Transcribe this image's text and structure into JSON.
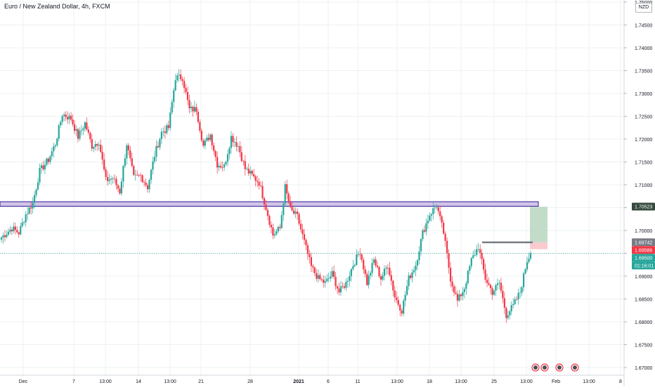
{
  "header": {
    "title": "Euro / New Zealand Dollar, 4h, FXCM",
    "currency": "NZD"
  },
  "price_tags": [
    {
      "label": "1.70523",
      "color": "#364a3d",
      "text_color": "#ffffff"
    },
    {
      "label": "1.69742",
      "color": "#787b86",
      "text_color": "#ffffff"
    },
    {
      "label": "1.69586",
      "color": "#f23645",
      "text_color": "#ffffff"
    },
    {
      "label": "1.69500",
      "color": "#26a69a",
      "text_color": "#ffffff"
    },
    {
      "label": "01:16:01",
      "color": "#26a69a",
      "text_color": "#ffffff"
    }
  ],
  "colors": {
    "up": "#26a69a",
    "down": "#f23645",
    "zone_fill": "#d1c4e9",
    "zone_border": "#311b92",
    "tp_fill": "#b9d6bf",
    "sl_fill": "#f8c5c9",
    "grid": "#eef0f3"
  },
  "chart_data": {
    "type": "candlestick",
    "title": "Euro / New Zealand Dollar, 4h, FXCM",
    "ylim": [
      1.67,
      1.75
    ],
    "y_ticks": [
      "1.67000",
      "1.67500",
      "1.68000",
      "1.68500",
      "1.69000",
      "1.69500",
      "1.70000",
      "1.70500",
      "1.71000",
      "1.71500",
      "1.72000",
      "1.72500",
      "1.73000",
      "1.73500",
      "1.74000",
      "1.74500",
      "1.75000"
    ],
    "x_ticks": [
      "Dec",
      "7",
      "13:00",
      "14",
      "13:00",
      "21",
      "28",
      "2021",
      "6",
      "11",
      "13:00",
      "18",
      "13:00",
      "25",
      "13:00",
      "Feb",
      "13:00",
      "8"
    ],
    "last_price": 1.695,
    "countdown": "01:16:01",
    "anchors": [
      [
        0,
        1.6985
      ],
      [
        6,
        1.7005
      ],
      [
        10,
        1.6995
      ],
      [
        14,
        1.7035
      ],
      [
        18,
        1.706
      ],
      [
        22,
        1.713
      ],
      [
        27,
        1.7155
      ],
      [
        31,
        1.719
      ],
      [
        35,
        1.7255
      ],
      [
        40,
        1.7245
      ],
      [
        44,
        1.7205
      ],
      [
        48,
        1.7235
      ],
      [
        52,
        1.7185
      ],
      [
        56,
        1.7195
      ],
      [
        60,
        1.711
      ],
      [
        64,
        1.7115
      ],
      [
        68,
        1.7085
      ],
      [
        72,
        1.719
      ],
      [
        76,
        1.7115
      ],
      [
        80,
        1.712
      ],
      [
        84,
        1.7095
      ],
      [
        88,
        1.7165
      ],
      [
        92,
        1.7215
      ],
      [
        96,
        1.7225
      ],
      [
        100,
        1.7335
      ],
      [
        104,
        1.7335
      ],
      [
        108,
        1.7265
      ],
      [
        112,
        1.7265
      ],
      [
        116,
        1.7185
      ],
      [
        120,
        1.721
      ],
      [
        124,
        1.7145
      ],
      [
        128,
        1.714
      ],
      [
        132,
        1.7205
      ],
      [
        136,
        1.7185
      ],
      [
        140,
        1.7135
      ],
      [
        144,
        1.712
      ],
      [
        148,
        1.7105
      ],
      [
        152,
        1.705
      ],
      [
        156,
        1.699
      ],
      [
        160,
        1.7005
      ],
      [
        163,
        1.7095
      ],
      [
        166,
        1.7045
      ],
      [
        170,
        1.703
      ],
      [
        174,
        1.6975
      ],
      [
        178,
        1.692
      ],
      [
        182,
        1.6895
      ],
      [
        186,
        1.6885
      ],
      [
        190,
        1.6905
      ],
      [
        194,
        1.6865
      ],
      [
        198,
        1.6885
      ],
      [
        202,
        1.6925
      ],
      [
        206,
        1.6955
      ],
      [
        210,
        1.6885
      ],
      [
        214,
        1.6935
      ],
      [
        218,
        1.6895
      ],
      [
        222,
        1.6925
      ],
      [
        226,
        1.6855
      ],
      [
        230,
        1.6825
      ],
      [
        234,
        1.6895
      ],
      [
        238,
        1.6925
      ],
      [
        242,
        1.6995
      ],
      [
        246,
        1.7035
      ],
      [
        250,
        1.7055
      ],
      [
        254,
        1.6995
      ],
      [
        258,
        1.6895
      ],
      [
        262,
        1.6845
      ],
      [
        266,
        1.6875
      ],
      [
        270,
        1.6935
      ],
      [
        274,
        1.6965
      ],
      [
        278,
        1.6895
      ],
      [
        282,
        1.6865
      ],
      [
        286,
        1.6885
      ],
      [
        290,
        1.6815
      ],
      [
        294,
        1.6835
      ],
      [
        298,
        1.6865
      ],
      [
        302,
        1.6935
      ],
      [
        304,
        1.695
      ]
    ],
    "horizontal_zone": {
      "from": 1.7053,
      "to": 1.7063
    },
    "position": {
      "entry": 1.6974,
      "take_profit": 1.7052,
      "stop_loss": 1.6959
    },
    "resistance_line": 1.6974,
    "last_price_line": 1.695
  }
}
